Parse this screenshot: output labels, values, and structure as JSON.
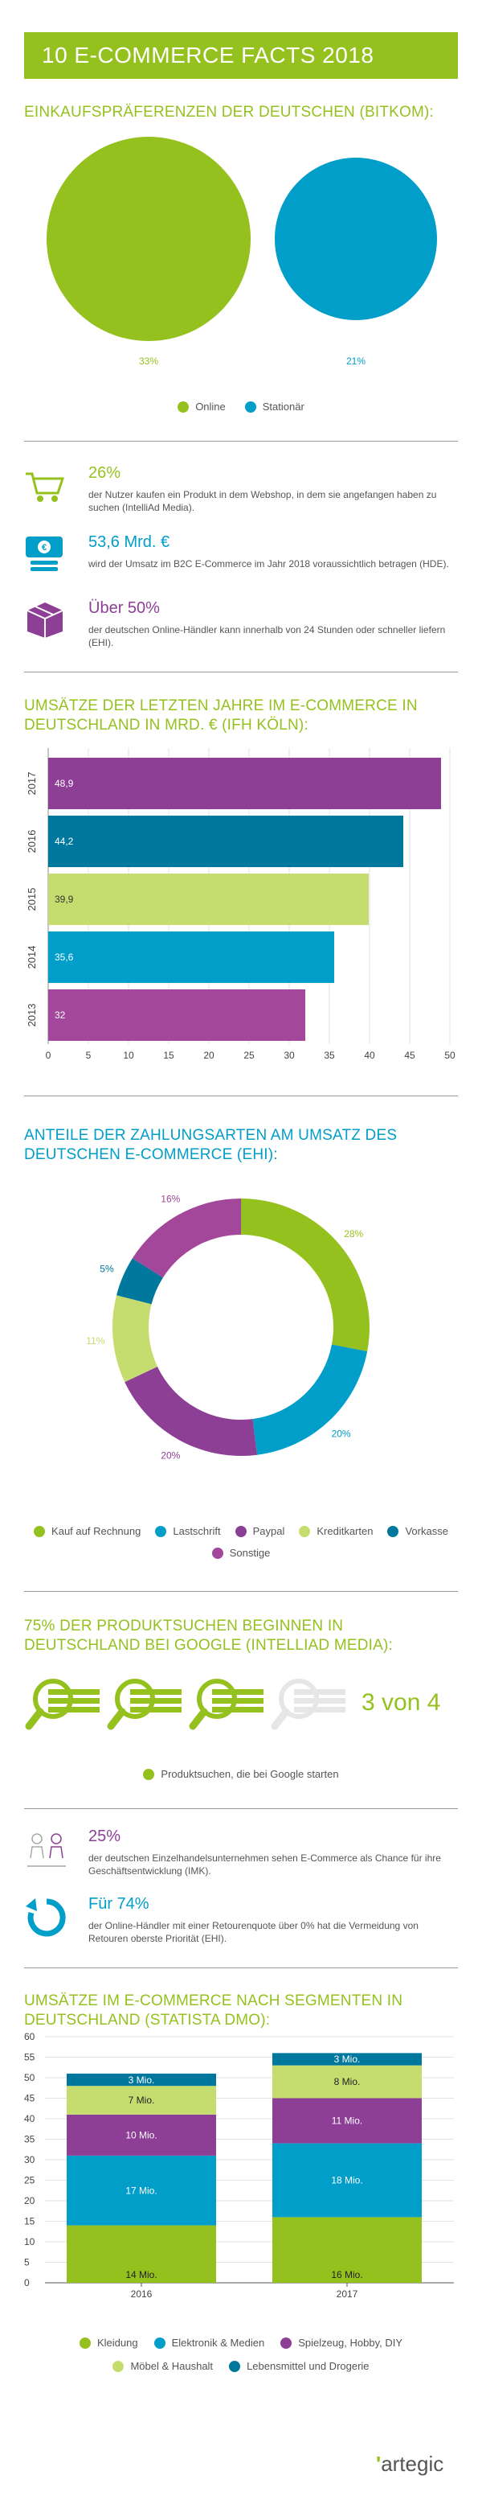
{
  "header": {
    "title": "10 E-COMMERCE FACTS 2018"
  },
  "section1": {
    "title": "Einkaufspräferenzen der Deutschen (Bitkom):",
    "labels": [
      "33%",
      "21%"
    ],
    "legend": [
      {
        "label": "Online",
        "color": "#95c11f"
      },
      {
        "label": "Stationär",
        "color": "#009ec8"
      }
    ]
  },
  "facts": [
    {
      "value": "26%",
      "text": "der Nutzer kaufen ein Produkt in dem Webshop, in dem sie angefangen haben zu suchen (IntelliAd Media).",
      "icon": "cart-icon",
      "color": "#95c11f"
    },
    {
      "value": "53,6 Mrd. €",
      "text": "wird der Umsatz im B2C E-Commerce im Jahr 2018 voraussichtlich betragen (HDE).",
      "icon": "money-icon",
      "color": "#009ec8"
    },
    {
      "value": "Über 50%",
      "text": "der deutschen Online-Händler kann innerhalb von 24 Stunden oder schneller liefern (EHI).",
      "icon": "package-icon",
      "color": "#8d3f96"
    }
  ],
  "section2": {
    "title": "Umsätze der letzten Jahre im E-Commerce in Deutschland in Mrd. € (IfH Köln):"
  },
  "section3": {
    "title": "Anteile der Zahlungsarten am Umsatz des deutschen E-Commerce (EHI):"
  },
  "section4": {
    "title": "75% der Produktsuchen beginnen in Deutschland bei Google (Intelliad Media):",
    "ratio": "3 von 4",
    "legend_label": "Produktsuchen, die bei Google starten"
  },
  "facts2": [
    {
      "value": "25%",
      "text": "der deutschen Einzelhandelsunternehmen sehen E-Commerce als Chance für ihre Geschäftsentwicklung (IMK).",
      "icon": "people-icon",
      "color": "#8d3f96"
    },
    {
      "value": "Für 74%",
      "text": "der Online-Händler mit einer Retourenquote über 0% hat die Vermeidung von Retouren oberste Priorität (EHI).",
      "icon": "return-arrow-icon",
      "color": "#009ec8"
    }
  ],
  "section5": {
    "title": "Umsätze im E-Commerce nach Segmenten in Deutschland (Statista DMO):"
  },
  "brand": {
    "name": "artegic"
  },
  "chart_data": [
    {
      "type": "pie",
      "title": "Einkaufspräferenzen der Deutschen (Bitkom)",
      "categories": [
        "Online",
        "Stationär"
      ],
      "values": [
        33,
        21
      ],
      "unit": "%",
      "colors": [
        "#95c11f",
        "#009ec8"
      ]
    },
    {
      "type": "bar",
      "orientation": "horizontal",
      "title": "Umsätze der letzten Jahre im E-Commerce in Deutschland in Mrd. € (IfH Köln)",
      "categories": [
        "2017",
        "2016",
        "2015",
        "2014",
        "2013"
      ],
      "values": [
        48.9,
        44.2,
        39.9,
        35.6,
        32
      ],
      "value_labels": [
        "48,9",
        "44,2",
        "39,9",
        "35,6",
        "32"
      ],
      "colors": [
        "#8d3f96",
        "#00789d",
        "#c5dd6e",
        "#009ec8",
        "#a3479a"
      ],
      "xlim": [
        0,
        50
      ],
      "xticks": [
        "0",
        "5",
        "10",
        "15",
        "20",
        "25",
        "30",
        "35",
        "40",
        "45",
        "50"
      ]
    },
    {
      "type": "pie",
      "subtype": "donut",
      "title": "Anteile der Zahlungsarten am Umsatz des deutschen E-Commerce (EHI)",
      "categories": [
        "Kauf auf Rechnung",
        "Lastschrift",
        "Paypal",
        "Kreditkarten",
        "Vorkasse",
        "Sonstige"
      ],
      "values": [
        28,
        20,
        20,
        11,
        5,
        16
      ],
      "value_labels": [
        "28%",
        "20%",
        "20%",
        "11%",
        "5%",
        "16%"
      ],
      "colors": [
        "#95c11f",
        "#009ec8",
        "#8d3f96",
        "#c5dd6e",
        "#00789d",
        "#a3479a"
      ]
    },
    {
      "type": "bar",
      "subtype": "stacked",
      "title": "Umsätze im E-Commerce nach Segmenten in Deutschland (Statista DMO)",
      "categories": [
        "2016",
        "2017"
      ],
      "series": [
        {
          "name": "Kleidung",
          "values": [
            14,
            16
          ],
          "labels": [
            "14 Mio.",
            "16 Mio."
          ],
          "color": "#95c11f"
        },
        {
          "name": "Elektronik & Medien",
          "values": [
            17,
            18
          ],
          "labels": [
            "17 Mio.",
            "18 Mio."
          ],
          "color": "#009ec8"
        },
        {
          "name": "Spielzeug, Hobby, DIY",
          "values": [
            10,
            11
          ],
          "labels": [
            "10 Mio.",
            "11 Mio."
          ],
          "color": "#8d3f96"
        },
        {
          "name": "Möbel & Haushalt",
          "values": [
            7,
            8
          ],
          "labels": [
            "7 Mio.",
            "8 Mio."
          ],
          "color": "#c5dd6e"
        },
        {
          "name": "Lebensmittel und Drogerie",
          "values": [
            3,
            3
          ],
          "labels": [
            "3 Mio.",
            "3 Mio."
          ],
          "color": "#00789d"
        }
      ],
      "ylim": [
        0,
        60
      ],
      "yticks": [
        "0",
        "5",
        "10",
        "15",
        "20",
        "25",
        "30",
        "35",
        "40",
        "45",
        "50",
        "55",
        "60"
      ]
    }
  ]
}
